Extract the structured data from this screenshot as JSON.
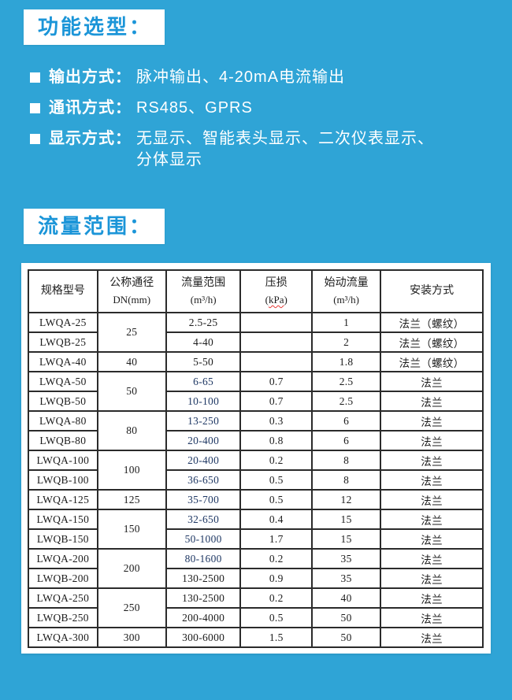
{
  "page": {
    "background_color": "#2FA4D6",
    "accent_blue": "#1B95D8",
    "navy_value_color": "#1F3864"
  },
  "sections": {
    "function": {
      "title": "功能选型："
    },
    "flow": {
      "title": "流量范围："
    }
  },
  "features": {
    "items": [
      {
        "label": "输出方式：",
        "text": "脉冲输出、4-20mA电流输出"
      },
      {
        "label": "通讯方式：",
        "text": "RS485、GPRS"
      },
      {
        "label": "显示方式：",
        "text": "无显示、智能表头显示、二次仪表显示、",
        "text2": "分体显示"
      }
    ]
  },
  "table": {
    "columns": [
      {
        "line1": "规格型号",
        "line2": ""
      },
      {
        "line1": "公称通径",
        "line2": "DN(mm)"
      },
      {
        "line1": "流量范围",
        "line2": "(m³/h)"
      },
      {
        "line1": "压损",
        "line2": "(kPa)",
        "misspell_underline": true
      },
      {
        "line1": "始动流量",
        "line2": "(m³/h)"
      },
      {
        "line1": "安装方式",
        "line2": ""
      }
    ],
    "rows": [
      {
        "model": "LWQA-25",
        "dn": "25",
        "dn_span": 2,
        "flow": "2.5-25",
        "flow_navy": false,
        "loss": "",
        "start": "1",
        "install": "法兰（螺纹）",
        "border": "thin"
      },
      {
        "model": "LWQB-25",
        "flow": "4-40",
        "flow_navy": false,
        "loss": "",
        "start": "2",
        "install": "法兰（螺纹）",
        "border": "thick"
      },
      {
        "model": "LWQA-40",
        "dn": "40",
        "dn_span": 1,
        "flow": "5-50",
        "flow_navy": false,
        "loss": "",
        "start": "1.8",
        "install": "法兰（螺纹）",
        "border": "thick"
      },
      {
        "model": "LWQA-50",
        "dn": "50",
        "dn_span": 2,
        "flow": "6-65",
        "flow_navy": true,
        "loss": "0.7",
        "start": "2.5",
        "install": "法兰",
        "border": "thin"
      },
      {
        "model": "LWQB-50",
        "flow": "10-100",
        "flow_navy": true,
        "loss": "0.7",
        "start": "2.5",
        "install": "法兰",
        "border": "thick"
      },
      {
        "model": "LWQA-80",
        "dn": "80",
        "dn_span": 2,
        "flow": "13-250",
        "flow_navy": true,
        "loss": "0.3",
        "start": "6",
        "install": "法兰",
        "border": "thin"
      },
      {
        "model": "LWQB-80",
        "flow": "20-400",
        "flow_navy": true,
        "loss": "0.8",
        "start": "6",
        "install": "法兰",
        "border": "thick"
      },
      {
        "model": "LWQA-100",
        "dn": "100",
        "dn_span": 2,
        "flow": "20-400",
        "flow_navy": true,
        "loss": "0.2",
        "start": "8",
        "install": "法兰",
        "border": "thin"
      },
      {
        "model": "LWQB-100",
        "flow": "36-650",
        "flow_navy": true,
        "loss": "0.5",
        "start": "8",
        "install": "法兰",
        "border": "thick"
      },
      {
        "model": "LWQA-125",
        "dn": "125",
        "dn_span": 1,
        "flow": "35-700",
        "flow_navy": true,
        "loss": "0.5",
        "start": "12",
        "install": "法兰",
        "border": "thick"
      },
      {
        "model": "LWQA-150",
        "dn": "150",
        "dn_span": 2,
        "flow": "32-650",
        "flow_navy": true,
        "loss": "0.4",
        "start": "15",
        "install": "法兰",
        "border": "thin"
      },
      {
        "model": "LWQB-150",
        "flow": "50-1000",
        "flow_navy": true,
        "loss": "1.7",
        "start": "15",
        "install": "法兰",
        "border": "thick"
      },
      {
        "model": "LWQA-200",
        "dn": "200",
        "dn_span": 2,
        "flow": "80-1600",
        "flow_navy": true,
        "loss": "0.2",
        "start": "35",
        "install": "法兰",
        "border": "thin"
      },
      {
        "model": "LWQB-200",
        "flow": "130-2500",
        "flow_navy": false,
        "loss": "0.9",
        "start": "35",
        "install": "法兰",
        "border": "thick"
      },
      {
        "model": "LWQA-250",
        "dn": "250",
        "dn_span": 2,
        "flow": "130-2500",
        "flow_navy": false,
        "loss": "0.2",
        "start": "40",
        "install": "法兰",
        "border": "thin"
      },
      {
        "model": "LWQB-250",
        "flow": "200-4000",
        "flow_navy": false,
        "loss": "0.5",
        "start": "50",
        "install": "法兰",
        "border": "thick"
      },
      {
        "model": "LWQA-300",
        "dn": "300",
        "dn_span": 1,
        "flow": "300-6000",
        "flow_navy": false,
        "loss": "1.5",
        "start": "50",
        "install": "法兰",
        "border": "thick"
      }
    ],
    "column_widths_pct": [
      15.2,
      15.1,
      16.4,
      15.7,
      15.1,
      22.5
    ]
  }
}
